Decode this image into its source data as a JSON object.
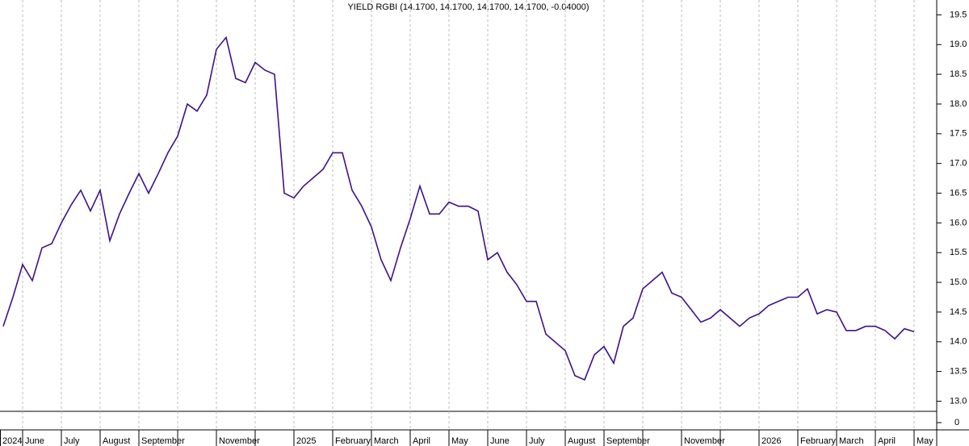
{
  "chart_data": [
    {
      "type": "line",
      "title": "YIELD RGBI (14.1700, 14.1700, 14.1700, 14.1700, -0.04000)",
      "color": "#40108a",
      "categories": [
        "2024",
        null,
        "June",
        null,
        null,
        null,
        "July",
        null,
        null,
        null,
        "August",
        null,
        null,
        null,
        "September",
        null,
        null,
        null,
        null,
        null,
        null,
        null,
        "November",
        null,
        null,
        null,
        null,
        null,
        null,
        null,
        "2025",
        null,
        null,
        null,
        "February",
        null,
        null,
        null,
        "March",
        null,
        null,
        null,
        "April",
        null,
        null,
        null,
        "May",
        null,
        null,
        null,
        "June",
        null,
        null,
        null,
        "July",
        null,
        null,
        null,
        "August",
        null,
        null,
        null,
        "September",
        null,
        null,
        null,
        null,
        null,
        null,
        null,
        "November",
        null,
        null,
        null,
        null,
        null,
        null,
        null,
        "2026",
        null,
        null,
        null,
        "February",
        null,
        null,
        null,
        "March",
        null,
        null,
        null,
        "April",
        null,
        null,
        null,
        "May"
      ],
      "values": [
        14.26,
        14.75,
        15.3,
        15.03,
        15.58,
        15.65,
        16.0,
        16.3,
        16.55,
        16.2,
        16.55,
        15.7,
        16.15,
        16.5,
        16.83,
        16.5,
        16.83,
        17.18,
        17.46,
        18.0,
        17.88,
        18.15,
        18.92,
        19.12,
        18.43,
        18.36,
        18.7,
        18.57,
        18.5,
        16.5,
        16.42,
        16.62,
        16.76,
        16.9,
        17.18,
        17.18,
        16.55,
        16.28,
        15.93,
        15.38,
        15.03,
        15.58,
        16.07,
        16.62,
        16.15,
        16.15,
        16.35,
        16.28,
        16.28,
        16.2,
        15.38,
        15.5,
        15.17,
        14.96,
        14.68,
        14.68,
        14.13,
        13.99,
        13.85,
        13.43,
        13.36,
        13.78,
        13.92,
        13.64,
        14.26,
        14.4,
        14.89,
        15.03,
        15.17,
        14.82,
        14.75,
        14.54,
        14.33,
        14.4,
        14.54,
        14.4,
        14.26,
        14.4,
        14.47,
        14.61,
        14.68,
        14.75,
        14.75,
        14.89,
        14.47,
        14.54,
        14.5,
        14.19,
        14.19,
        14.26,
        14.26,
        14.19,
        14.05,
        14.22,
        14.17
      ],
      "ylim": [
        12.83,
        19.75
      ],
      "yticks": [
        {
          "value": 13,
          "label": "13.0"
        },
        13.5,
        {
          "value": 14,
          "label": "14.0"
        },
        14.5,
        {
          "value": 15,
          "label": "15.0"
        },
        15.5,
        {
          "value": 16,
          "label": "16.0"
        },
        16.5,
        {
          "value": 17,
          "label": "17.0"
        },
        17.5,
        {
          "value": 18,
          "label": "18.0"
        },
        18.5,
        {
          "value": 19,
          "label": "19.0"
        },
        19.5
      ]
    },
    {
      "type": "bar",
      "yticks": [
        0
      ]
    }
  ]
}
